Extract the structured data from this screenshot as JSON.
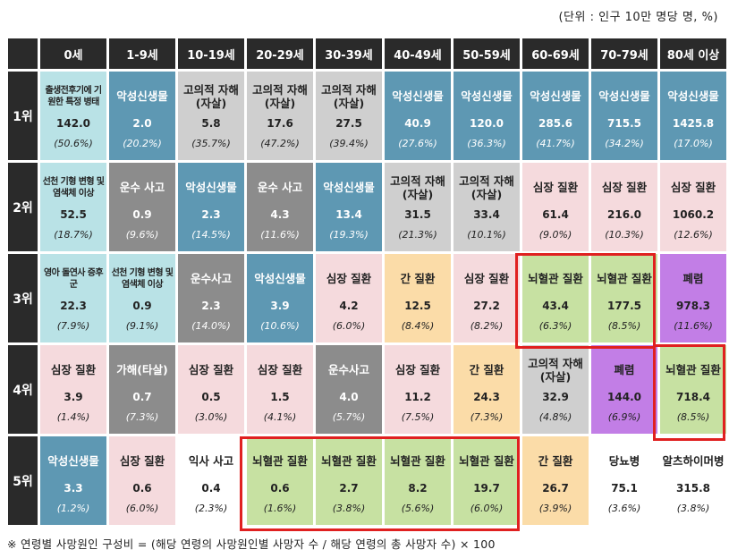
{
  "unit_note": "(단위 : 인구 10만 명당 명, %)",
  "footnote": "※ 연령별 사망원인 구성비 = (해당 연령의 사망원인별 사망자 수 / 해당 연령의 총 사망자 수) × 100",
  "age_groups": [
    "0세",
    "1-9세",
    "10-19세",
    "20-29세",
    "30-39세",
    "40-49세",
    "50-59세",
    "60-69세",
    "70-79세",
    "80세 이상"
  ],
  "ranks": [
    {
      "label": "1위",
      "cells": [
        {
          "name": "출생전후기에 기원한 특정 병태",
          "value": "142.0",
          "pct": "(50.6%)",
          "color": "teal",
          "small": true
        },
        {
          "name": "악성신생물",
          "value": "2.0",
          "pct": "(20.2%)",
          "color": "blue"
        },
        {
          "name": "고의적 자해(자살)",
          "value": "5.8",
          "pct": "(35.7%)",
          "color": "lgrey"
        },
        {
          "name": "고의적 자해(자살)",
          "value": "17.6",
          "pct": "(47.2%)",
          "color": "lgrey"
        },
        {
          "name": "고의적 자해(자살)",
          "value": "27.5",
          "pct": "(39.4%)",
          "color": "lgrey"
        },
        {
          "name": "악성신생물",
          "value": "40.9",
          "pct": "(27.6%)",
          "color": "blue"
        },
        {
          "name": "악성신생물",
          "value": "120.0",
          "pct": "(36.3%)",
          "color": "blue"
        },
        {
          "name": "악성신생물",
          "value": "285.6",
          "pct": "(41.7%)",
          "color": "blue"
        },
        {
          "name": "악성신생물",
          "value": "715.5",
          "pct": "(34.2%)",
          "color": "blue"
        },
        {
          "name": "악성신생물",
          "value": "1425.8",
          "pct": "(17.0%)",
          "color": "blue"
        }
      ]
    },
    {
      "label": "2위",
      "cells": [
        {
          "name": "선천 기형 변형 및 염색체 이상",
          "value": "52.5",
          "pct": "(18.7%)",
          "color": "teal",
          "small": true
        },
        {
          "name": "운수 사고",
          "value": "0.9",
          "pct": "(9.6%)",
          "color": "dgrey"
        },
        {
          "name": "악성신생물",
          "value": "2.3",
          "pct": "(14.5%)",
          "color": "blue"
        },
        {
          "name": "운수 사고",
          "value": "4.3",
          "pct": "(11.6%)",
          "color": "dgrey"
        },
        {
          "name": "악성신생물",
          "value": "13.4",
          "pct": "(19.3%)",
          "color": "blue"
        },
        {
          "name": "고의적 자해(자살)",
          "value": "31.5",
          "pct": "(21.3%)",
          "color": "lgrey"
        },
        {
          "name": "고의적 자해(자살)",
          "value": "33.4",
          "pct": "(10.1%)",
          "color": "lgrey"
        },
        {
          "name": "심장 질환",
          "value": "61.4",
          "pct": "(9.0%)",
          "color": "pink"
        },
        {
          "name": "심장 질환",
          "value": "216.0",
          "pct": "(10.3%)",
          "color": "pink"
        },
        {
          "name": "심장 질환",
          "value": "1060.2",
          "pct": "(12.6%)",
          "color": "pink"
        }
      ]
    },
    {
      "label": "3위",
      "cells": [
        {
          "name": "영아 돌연사 증후군",
          "value": "22.3",
          "pct": "(7.9%)",
          "color": "teal",
          "small": true
        },
        {
          "name": "선천 기형 변형 및 염색체 이상",
          "value": "0.9",
          "pct": "(9.1%)",
          "color": "teal",
          "small": true
        },
        {
          "name": "운수사고",
          "value": "2.3",
          "pct": "(14.0%)",
          "color": "dgrey"
        },
        {
          "name": "악성신생물",
          "value": "3.9",
          "pct": "(10.6%)",
          "color": "blue"
        },
        {
          "name": "심장 질환",
          "value": "4.2",
          "pct": "(6.0%)",
          "color": "pink"
        },
        {
          "name": "간 질환",
          "value": "12.5",
          "pct": "(8.4%)",
          "color": "orange"
        },
        {
          "name": "심장 질환",
          "value": "27.2",
          "pct": "(8.2%)",
          "color": "pink"
        },
        {
          "name": "뇌혈관 질환",
          "value": "43.4",
          "pct": "(6.3%)",
          "color": "green"
        },
        {
          "name": "뇌혈관 질환",
          "value": "177.5",
          "pct": "(8.5%)",
          "color": "green"
        },
        {
          "name": "폐렴",
          "value": "978.3",
          "pct": "(11.6%)",
          "color": "purple"
        }
      ]
    },
    {
      "label": "4위",
      "cells": [
        {
          "name": "심장 질환",
          "value": "3.9",
          "pct": "(1.4%)",
          "color": "pink"
        },
        {
          "name": "가해(타살)",
          "value": "0.7",
          "pct": "(7.3%)",
          "color": "dgrey"
        },
        {
          "name": "심장 질환",
          "value": "0.5",
          "pct": "(3.0%)",
          "color": "pink"
        },
        {
          "name": "심장 질환",
          "value": "1.5",
          "pct": "(4.1%)",
          "color": "pink"
        },
        {
          "name": "운수사고",
          "value": "4.0",
          "pct": "(5.7%)",
          "color": "dgrey"
        },
        {
          "name": "심장 질환",
          "value": "11.2",
          "pct": "(7.5%)",
          "color": "pink"
        },
        {
          "name": "간 질환",
          "value": "24.3",
          "pct": "(7.3%)",
          "color": "orange"
        },
        {
          "name": "고의적 자해(자살)",
          "value": "32.9",
          "pct": "(4.8%)",
          "color": "lgrey"
        },
        {
          "name": "폐렴",
          "value": "144.0",
          "pct": "(6.9%)",
          "color": "purple"
        },
        {
          "name": "뇌혈관 질환",
          "value": "718.4",
          "pct": "(8.5%)",
          "color": "green"
        }
      ]
    },
    {
      "label": "5위",
      "cells": [
        {
          "name": "악성신생물",
          "value": "3.3",
          "pct": "(1.2%)",
          "color": "blue"
        },
        {
          "name": "심장 질환",
          "value": "0.6",
          "pct": "(6.0%)",
          "color": "pink"
        },
        {
          "name": "익사 사고",
          "value": "0.4",
          "pct": "(2.3%)",
          "color": "white"
        },
        {
          "name": "뇌혈관 질환",
          "value": "0.6",
          "pct": "(1.6%)",
          "color": "green"
        },
        {
          "name": "뇌혈관 질환",
          "value": "2.7",
          "pct": "(3.8%)",
          "color": "green"
        },
        {
          "name": "뇌혈관 질환",
          "value": "8.2",
          "pct": "(5.6%)",
          "color": "green"
        },
        {
          "name": "뇌혈관 질환",
          "value": "19.7",
          "pct": "(6.0%)",
          "color": "green"
        },
        {
          "name": "간 질환",
          "value": "26.7",
          "pct": "(3.9%)",
          "color": "orange"
        },
        {
          "name": "당뇨병",
          "value": "75.1",
          "pct": "(3.6%)",
          "color": "white"
        },
        {
          "name": "알츠하이머병",
          "value": "315.8",
          "pct": "(3.8%)",
          "color": "white"
        }
      ]
    }
  ],
  "highlight_color": "#e02020"
}
